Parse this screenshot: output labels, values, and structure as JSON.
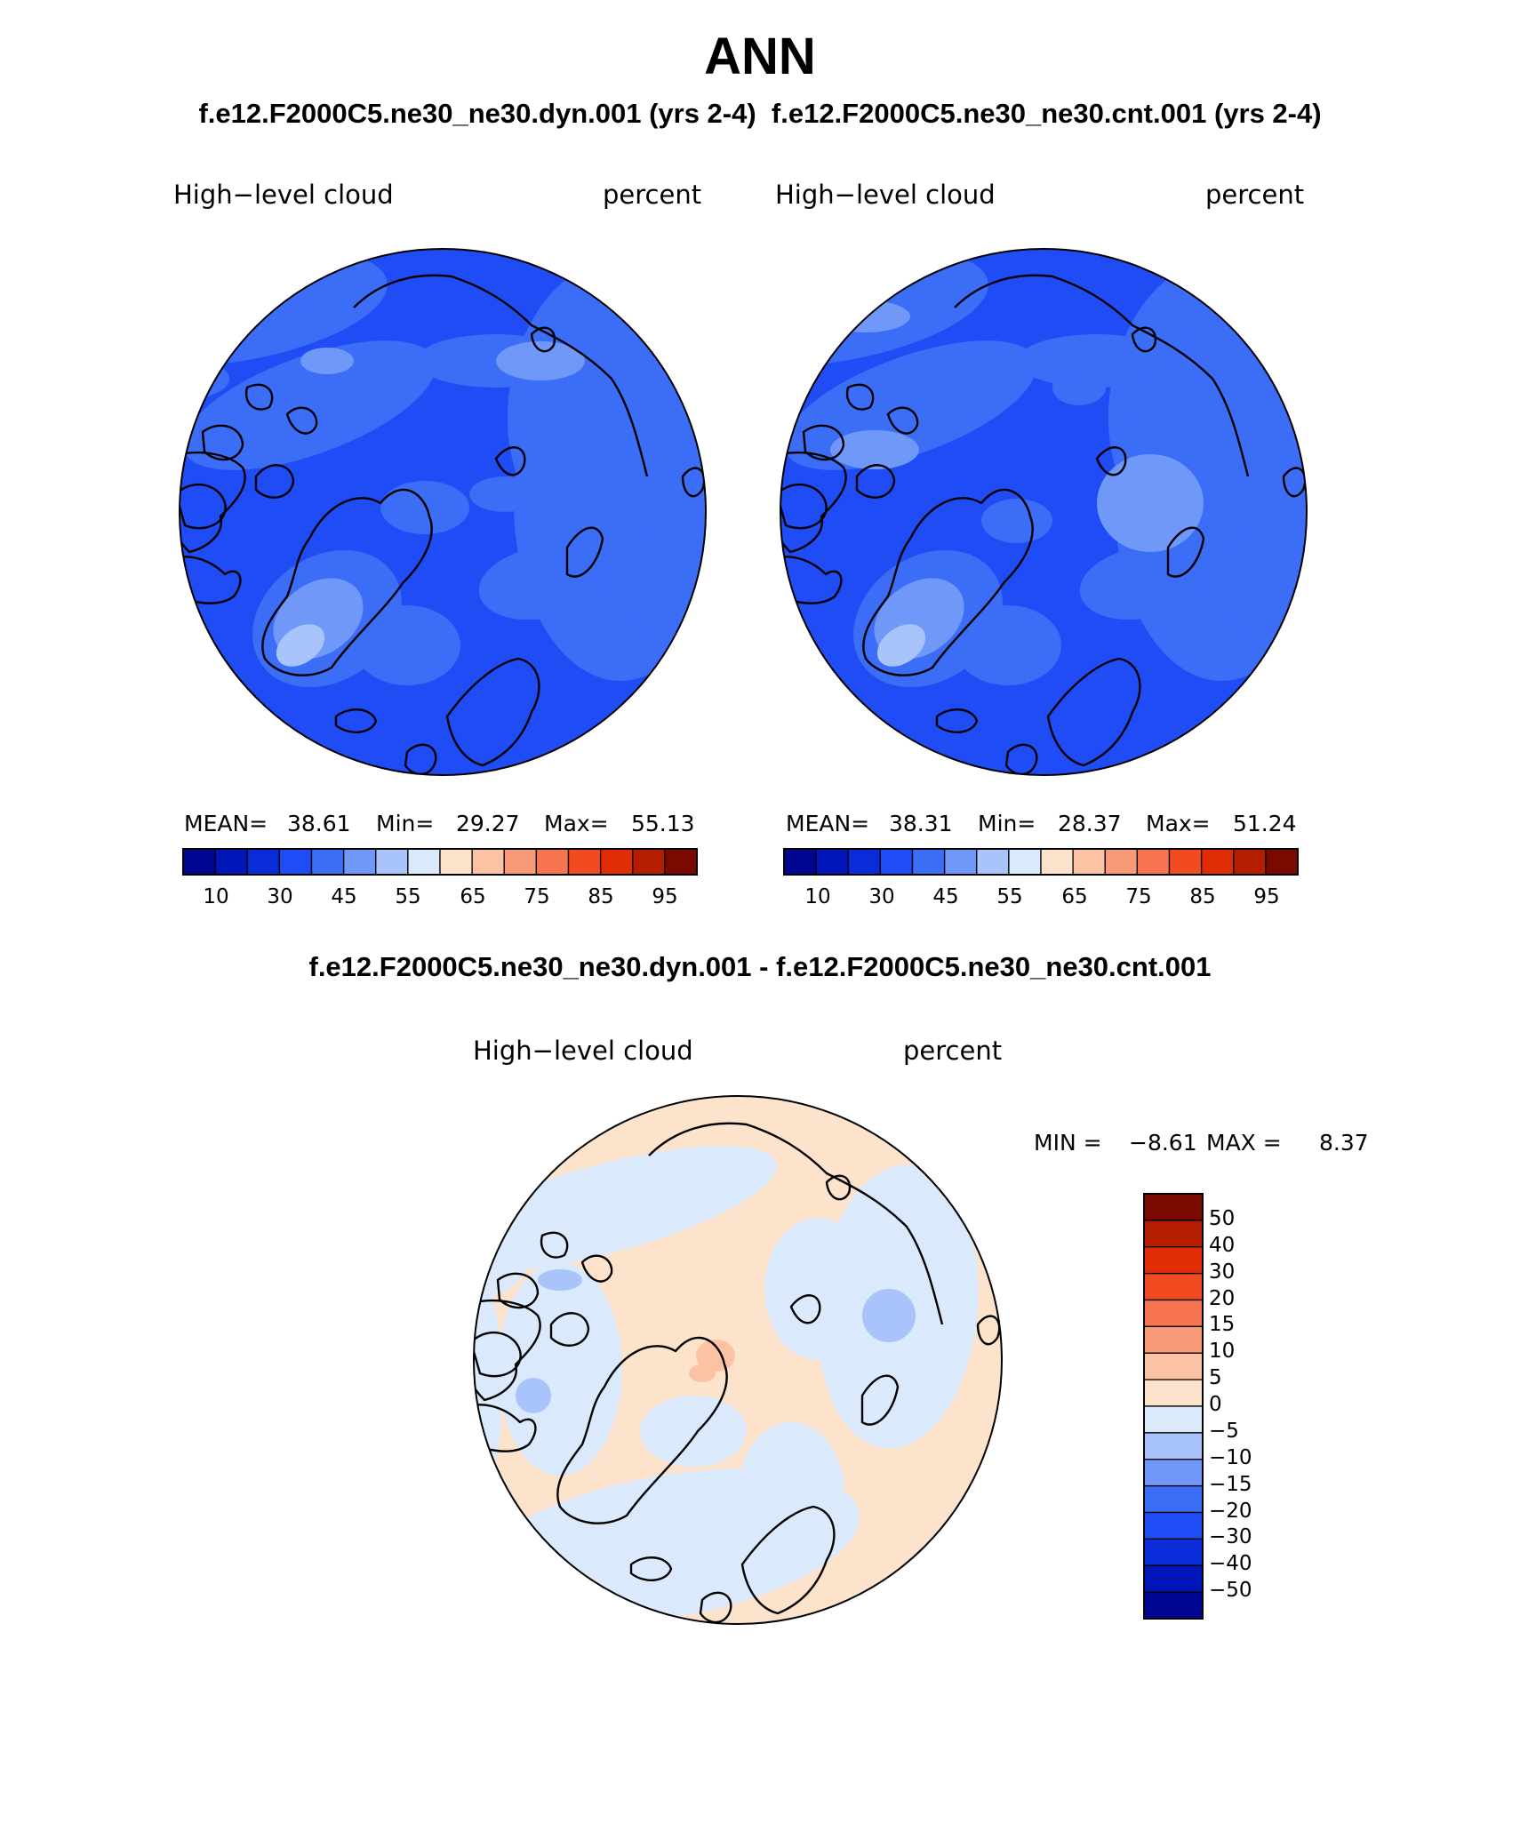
{
  "page": {
    "season": "ANN",
    "case_titles": "f.e12.F2000C5.ne30_ne30.dyn.001 (yrs 2-4)  f.e12.F2000C5.ne30_ne30.cnt.001 (yrs 2-4)",
    "diff_title": "f.e12.F2000C5.ne30_ne30.dyn.001 - f.e12.F2000C5.ne30_ne30.cnt.001"
  },
  "panels": [
    {
      "variable": "High−level cloud",
      "units": "percent",
      "stats": {
        "mean_label": "MEAN=",
        "mean": "38.61",
        "min_label": "Min=",
        "min": "29.27",
        "max_label": "Max=",
        "max": "55.13"
      }
    },
    {
      "variable": "High−level cloud",
      "units": "percent",
      "stats": {
        "mean_label": "MEAN=",
        "mean": "38.31",
        "min_label": "Min=",
        "min": "28.37",
        "max_label": "Max=",
        "max": "51.24"
      }
    }
  ],
  "colorbar": {
    "tick_labels": [
      "10",
      "30",
      "45",
      "55",
      "65",
      "75",
      "85",
      "95"
    ],
    "colors": [
      "#00068f",
      "#0016b9",
      "#0a2bd8",
      "#1f4cf5",
      "#3b6df7",
      "#6f98f8",
      "#a9c4fa",
      "#dbe9fd",
      "#fde2cc",
      "#fbc2a4",
      "#f89a78",
      "#f6744f",
      "#f24a21",
      "#e12d05",
      "#b51d00",
      "#7a0a00"
    ]
  },
  "diff_panel": {
    "variable": "High−level cloud",
    "units": "percent",
    "min_label": "MIN =",
    "min": "−8.61",
    "max_label": "MAX =",
    "max": "8.37",
    "colorbar": {
      "labels": [
        "50",
        "40",
        "30",
        "20",
        "15",
        "10",
        "5",
        "0",
        "−5",
        "−10",
        "−15",
        "−20",
        "−30",
        "−40",
        "−50"
      ],
      "colors": [
        "#7a0a00",
        "#b51d00",
        "#e12d05",
        "#f24a21",
        "#f6744f",
        "#f89a78",
        "#fbc2a4",
        "#fde2cc",
        "#dbe9fd",
        "#a9c4fa",
        "#6f98f8",
        "#3b6df7",
        "#1f4cf5",
        "#0a2bd8",
        "#0016b9",
        "#00068f"
      ]
    }
  },
  "map_fill_colors": {
    "base_blue": "#1f4cf5",
    "mid_blue": "#3b6df7",
    "light_blue": "#6f98f8",
    "pale_blue": "#a9c4fa",
    "diff_pos": "#fde2cc",
    "diff_neg": "#dbe9fd",
    "diff_pos2": "#fbc2a4",
    "diff_neg2": "#a9c4fa"
  }
}
